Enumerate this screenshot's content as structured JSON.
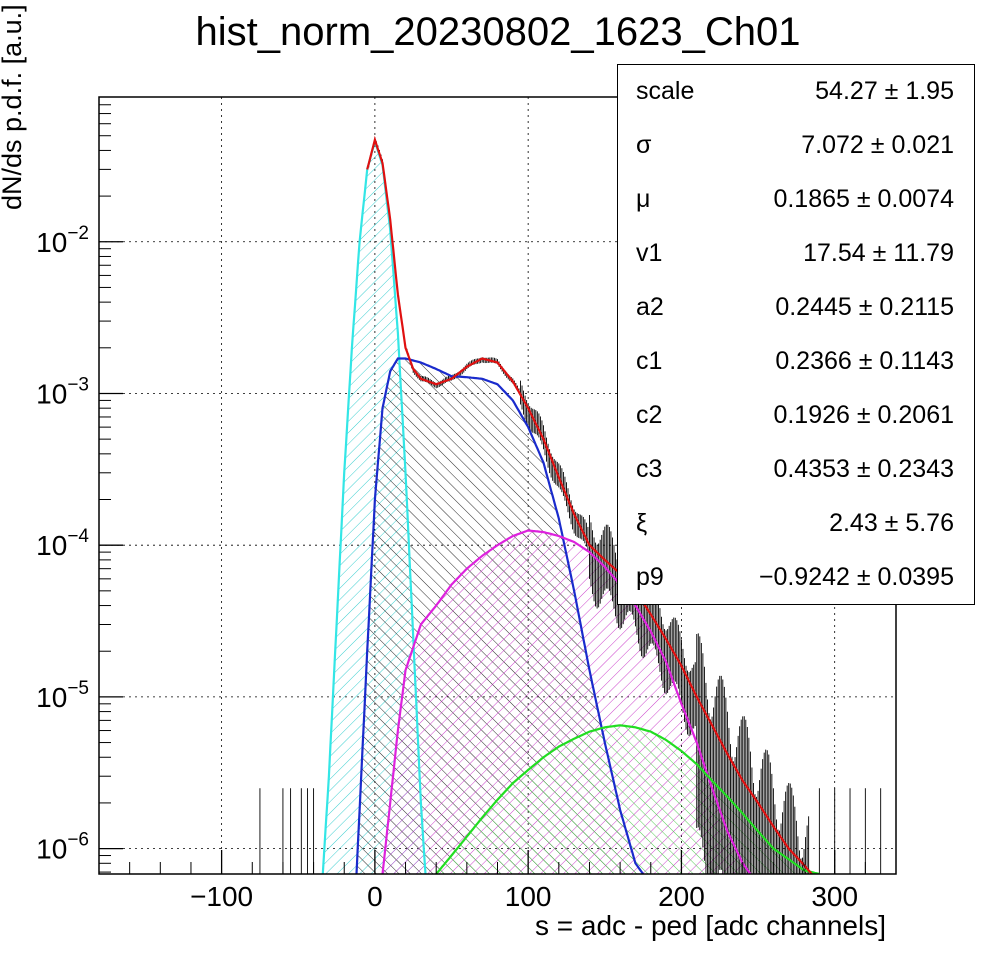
{
  "title": "hist_norm_20230802_1623_Ch01",
  "chart_data": {
    "type": "line",
    "title": "hist_norm_20230802_1623_Ch01",
    "xlabel": "s = adc - ped [adc channels]",
    "ylabel": "dN/ds p.d.f. [a.u.]",
    "xlim": [
      -180,
      340
    ],
    "ylim": [
      6.8e-07,
      0.09
    ],
    "y_scale": "log",
    "grid": true,
    "x_ticks": [
      {
        "v": -100,
        "label": "−100"
      },
      {
        "v": 0,
        "label": "0"
      },
      {
        "v": 100,
        "label": "100"
      },
      {
        "v": 200,
        "label": "200"
      },
      {
        "v": 300,
        "label": "300"
      }
    ],
    "y_ticks": [
      {
        "v": 1e-06,
        "base": "10",
        "exp": "−6"
      },
      {
        "v": 1e-05,
        "base": "10",
        "exp": "−5"
      },
      {
        "v": 0.0001,
        "base": "10",
        "exp": "−4"
      },
      {
        "v": 0.001,
        "base": "10",
        "exp": "−3"
      },
      {
        "v": 0.01,
        "base": "10",
        "exp": "−2"
      }
    ],
    "series": [
      {
        "color": "#33e6e6",
        "hatch": "#3ccfd0",
        "x": [
          -34,
          -30,
          -25,
          -20,
          -15,
          -10,
          -5,
          0,
          5,
          10,
          15,
          20,
          25,
          30,
          33
        ],
        "y": [
          6.8e-07,
          3e-06,
          3e-05,
          0.0003,
          0.002,
          0.01,
          0.03,
          0.046,
          0.032,
          0.012,
          0.0025,
          0.0003,
          2.5e-05,
          2e-06,
          6.8e-07
        ]
      },
      {
        "color": "#1a2bcc",
        "hatch": "#2a2a2a",
        "x": [
          -12,
          -5,
          0,
          5,
          10,
          15,
          20,
          30,
          40,
          50,
          60,
          70,
          80,
          90,
          100,
          110,
          120,
          130,
          140,
          150,
          160,
          170,
          175
        ],
        "y": [
          6.8e-07,
          2e-05,
          0.0002,
          0.0008,
          0.0014,
          0.0017,
          0.0017,
          0.0016,
          0.00145,
          0.0013,
          0.00128,
          0.00125,
          0.00115,
          0.0009,
          0.0006,
          0.00035,
          0.00015,
          5e-05,
          1.5e-05,
          5e-06,
          1.8e-06,
          8e-07,
          6.8e-07
        ]
      },
      {
        "color": "#dd22dd",
        "hatch": "#cc44cc",
        "x": [
          5,
          10,
          15,
          20,
          30,
          40,
          50,
          60,
          70,
          80,
          90,
          100,
          110,
          120,
          130,
          140,
          150,
          160,
          170,
          180,
          190,
          200,
          210,
          220,
          230,
          240,
          245
        ],
        "y": [
          6.8e-07,
          2e-06,
          6e-06,
          1.5e-05,
          3e-05,
          4e-05,
          5.5e-05,
          7e-05,
          8.5e-05,
          0.0001,
          0.000115,
          0.000125,
          0.000122,
          0.000115,
          0.000105,
          9e-05,
          7.2e-05,
          5.5e-05,
          4e-05,
          2.7e-05,
          1.7e-05,
          9e-06,
          5e-06,
          2.5e-06,
          1.3e-06,
          8e-07,
          6.8e-07
        ]
      },
      {
        "color": "#22dd22",
        "hatch": "#55cc55",
        "x": [
          40,
          50,
          60,
          70,
          80,
          90,
          100,
          110,
          120,
          130,
          140,
          150,
          160,
          170,
          180,
          190,
          200,
          210,
          220,
          230,
          240,
          250,
          260,
          270,
          280,
          290
        ],
        "y": [
          6.8e-07,
          9e-07,
          1.2e-06,
          1.6e-06,
          2.1e-06,
          2.7e-06,
          3.3e-06,
          4e-06,
          4.7e-06,
          5.3e-06,
          5.9e-06,
          6.3e-06,
          6.5e-06,
          6.3e-06,
          5.9e-06,
          5.2e-06,
          4.4e-06,
          3.6e-06,
          2.8e-06,
          2.2e-06,
          1.7e-06,
          1.3e-06,
          1e-06,
          8.5e-07,
          7.2e-07,
          6.8e-07
        ]
      },
      {
        "color": "#e01010",
        "hatch": null,
        "x": [
          -5,
          0,
          5,
          10,
          15,
          20,
          25,
          30,
          40,
          50,
          60,
          70,
          80,
          90,
          100,
          110,
          120,
          130,
          140,
          150,
          160,
          170,
          180,
          190,
          200,
          210,
          220,
          230,
          240,
          250,
          260,
          270,
          280,
          285
        ],
        "y": [
          0.03,
          0.047,
          0.033,
          0.014,
          0.0045,
          0.002,
          0.00145,
          0.00125,
          0.00115,
          0.00125,
          0.0015,
          0.0017,
          0.0016,
          0.0012,
          0.0008,
          0.0005,
          0.00028,
          0.00016,
          0.0001,
          8e-05,
          6.5e-05,
          5e-05,
          3.5e-05,
          2.4e-05,
          1.6e-05,
          1e-05,
          6.5e-06,
          4.2e-06,
          2.8e-06,
          2e-06,
          1.4e-06,
          1e-06,
          7.8e-07,
          6.8e-07
        ]
      }
    ]
  },
  "stats": [
    {
      "name": "scale",
      "value": "54.27 ± 1.95"
    },
    {
      "name": "σ",
      "value": "7.072 ± 0.021"
    },
    {
      "name": "μ",
      "value": "0.1865 ± 0.0074"
    },
    {
      "name": "v1",
      "value": "17.54 ± 11.79"
    },
    {
      "name": "a2",
      "value": "0.2445 ± 0.2115"
    },
    {
      "name": "c1",
      "value": "0.2366 ± 0.1143"
    },
    {
      "name": "c2",
      "value": "0.1926 ± 0.2061"
    },
    {
      "name": "c3",
      "value": "0.4353 ± 0.2343"
    },
    {
      "name": "ξ",
      "value": "2.43 ± 5.76"
    },
    {
      "name": "p9",
      "value": "−0.9242 ± 0.0395"
    }
  ]
}
